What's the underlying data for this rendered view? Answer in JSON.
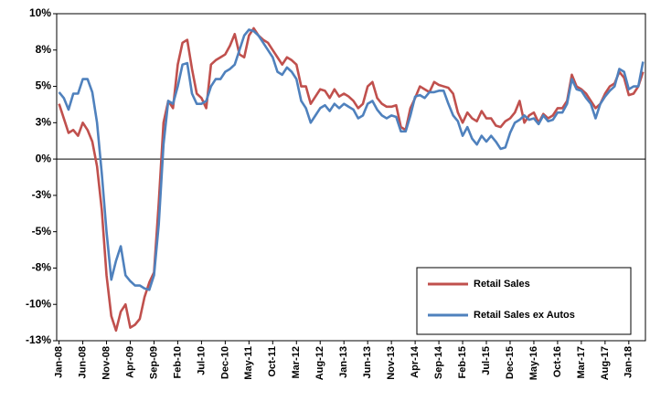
{
  "chart_data": {
    "type": "line",
    "categories": [
      "Jan-08",
      null,
      null,
      null,
      null,
      "Jun-08",
      null,
      null,
      null,
      null,
      "Nov-08",
      null,
      null,
      null,
      null,
      "Apr-09",
      null,
      null,
      null,
      null,
      "Sep-09",
      null,
      null,
      null,
      null,
      "Feb-10",
      null,
      null,
      null,
      null,
      "Jul-10",
      null,
      null,
      null,
      null,
      "Dec-10",
      null,
      null,
      null,
      null,
      "May-11",
      null,
      null,
      null,
      null,
      "Oct-11",
      null,
      null,
      null,
      null,
      "Mar-12",
      null,
      null,
      null,
      null,
      "Aug-12",
      null,
      null,
      null,
      null,
      "Jan-13",
      null,
      null,
      null,
      null,
      "Jun-13",
      null,
      null,
      null,
      null,
      "Nov-13",
      null,
      null,
      null,
      null,
      "Apr-14",
      null,
      null,
      null,
      null,
      "Sep-14",
      null,
      null,
      null,
      null,
      "Feb-15",
      null,
      null,
      null,
      null,
      "Jul-15",
      null,
      null,
      null,
      null,
      "Dec-15",
      null,
      null,
      null,
      null,
      "May-16",
      null,
      null,
      null,
      null,
      "Oct-16",
      null,
      null,
      null,
      null,
      "Mar-17",
      null,
      null,
      null,
      null,
      "Aug-17",
      null,
      null,
      null,
      null,
      "Jan-18",
      null,
      null,
      null
    ],
    "series": [
      {
        "name": "Retail Sales",
        "color": "#c0504d",
        "values": [
          3.8,
          2.8,
          1.8,
          2.0,
          1.6,
          2.5,
          2.0,
          1.2,
          -0.5,
          -3.5,
          -8.0,
          -10.8,
          -11.8,
          -10.5,
          -10.0,
          -11.6,
          -11.4,
          -11.0,
          -9.5,
          -8.5,
          -7.8,
          -3.0,
          2.5,
          4.0,
          3.5,
          6.5,
          8.0,
          8.2,
          6.2,
          4.5,
          4.2,
          3.5,
          6.5,
          6.8,
          7.0,
          7.2,
          7.8,
          8.6,
          7.2,
          7.0,
          8.5,
          9.0,
          8.5,
          8.2,
          8.0,
          7.5,
          7.0,
          6.5,
          7.0,
          6.8,
          6.5,
          5.0,
          5.0,
          3.8,
          4.3,
          4.8,
          4.7,
          4.2,
          4.8,
          4.3,
          4.5,
          4.3,
          4.0,
          3.5,
          3.8,
          5.0,
          5.3,
          4.2,
          3.8,
          3.6,
          3.6,
          3.7,
          2.2,
          2.0,
          3.5,
          4.2,
          5.0,
          4.8,
          4.6,
          5.3,
          5.1,
          5.0,
          4.9,
          4.5,
          3.2,
          2.5,
          3.2,
          2.8,
          2.6,
          3.3,
          2.8,
          2.8,
          2.3,
          2.2,
          2.6,
          2.8,
          3.2,
          4.0,
          2.5,
          3.0,
          3.2,
          2.5,
          3.1,
          2.8,
          3.0,
          3.5,
          3.5,
          4.0,
          5.8,
          5.0,
          4.8,
          4.5,
          4.0,
          3.5,
          3.8,
          4.5,
          5.0,
          5.2,
          6.0,
          5.6,
          4.4,
          4.5,
          5.0,
          6.0
        ]
      },
      {
        "name": "Retail Sales ex Autos",
        "color": "#4f81bd",
        "values": [
          4.6,
          4.2,
          3.4,
          4.5,
          4.5,
          5.5,
          5.5,
          4.6,
          2.5,
          -1.0,
          -5.0,
          -8.3,
          -7.0,
          -6.0,
          -8.0,
          -8.4,
          -8.7,
          -8.7,
          -8.9,
          -9.0,
          -8.0,
          -4.5,
          1.0,
          4.0,
          3.8,
          5.0,
          6.5,
          6.6,
          4.5,
          3.8,
          3.8,
          4.0,
          5.0,
          5.5,
          5.5,
          6.0,
          6.2,
          6.5,
          7.5,
          8.5,
          8.9,
          8.8,
          8.5,
          8.0,
          7.5,
          7.0,
          6.0,
          5.8,
          6.3,
          6.0,
          5.5,
          4.0,
          3.5,
          2.5,
          3.0,
          3.5,
          3.7,
          3.3,
          3.8,
          3.5,
          3.8,
          3.6,
          3.4,
          2.8,
          3.0,
          3.8,
          4.0,
          3.4,
          3.0,
          2.8,
          3.0,
          2.9,
          1.9,
          1.9,
          3.0,
          4.3,
          4.4,
          4.2,
          4.6,
          4.6,
          4.7,
          4.7,
          3.8,
          3.0,
          2.6,
          1.6,
          2.2,
          1.4,
          1.0,
          1.6,
          1.2,
          1.6,
          1.2,
          0.7,
          0.8,
          1.8,
          2.5,
          2.7,
          3.0,
          2.7,
          2.8,
          2.4,
          3.0,
          2.6,
          2.7,
          3.2,
          3.2,
          3.8,
          5.5,
          4.8,
          4.7,
          4.2,
          3.8,
          2.8,
          3.8,
          4.3,
          4.7,
          5.0,
          6.2,
          6.0,
          4.8,
          5.0,
          5.0,
          6.7
        ]
      }
    ],
    "ylim": [
      -12.5,
      10
    ],
    "yticks": [
      {
        "value": 10,
        "label": "10%"
      },
      {
        "value": 7.5,
        "label": "8%"
      },
      {
        "value": 5,
        "label": "5%"
      },
      {
        "value": 2.5,
        "label": "3%"
      },
      {
        "value": 0,
        "label": "0%"
      },
      {
        "value": -2.5,
        "label": "-3%"
      },
      {
        "value": -5,
        "label": "-5%"
      },
      {
        "value": -7.5,
        "label": "-8%"
      },
      {
        "value": -10,
        "label": "-10%"
      },
      {
        "value": -12.5,
        "label": "-13%"
      }
    ],
    "grid": false,
    "legend": "lower right"
  }
}
